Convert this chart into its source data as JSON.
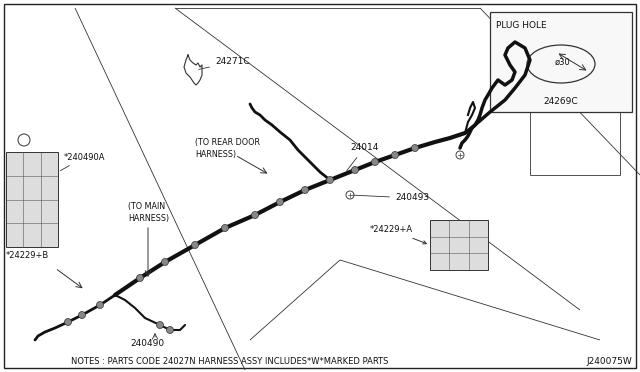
{
  "background_color": "#ffffff",
  "border_color": "#222222",
  "fig_width": 6.4,
  "fig_height": 3.72,
  "dpi": 100,
  "notes_text": "NOTES : PARTS CODE 24027N HARNESS ASSY INCLUDES*W*MARKED PARTS",
  "diagram_id": "J240075W",
  "plug_hole_label": "PLUG HOLE",
  "plug_hole_part": "24269C",
  "plug_hole_dim": "ø30",
  "line_color": "#333333",
  "harness_color": "#111111"
}
